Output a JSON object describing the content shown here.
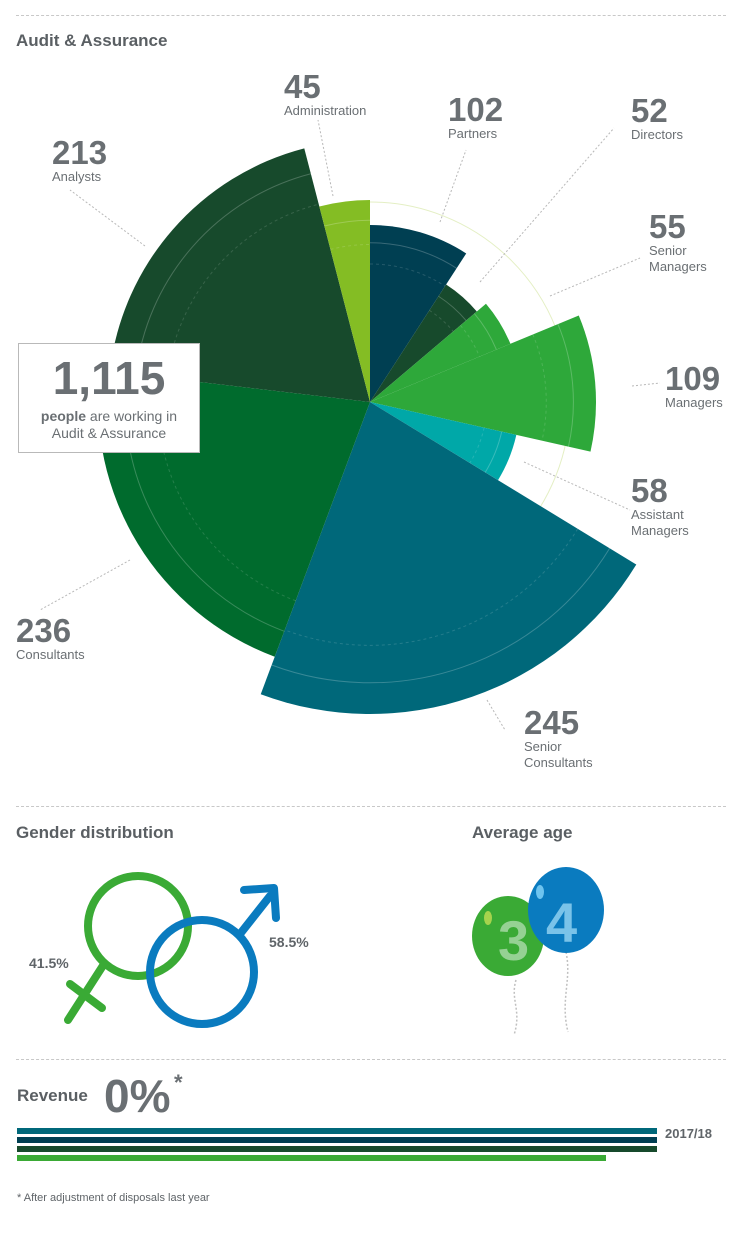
{
  "section_audit": {
    "title": "Audit & Assurance"
  },
  "total": {
    "number": "1,115",
    "bold": "people",
    "rest": " are working in",
    "line2": "Audit & Assurance"
  },
  "chart_data": {
    "type": "pie",
    "title": "Audit & Assurance",
    "slices": [
      {
        "label": "Partners",
        "value": 102,
        "display": "102",
        "color": "#003f52"
      },
      {
        "label": "Directors",
        "value": 52,
        "display": "52",
        "color": "#174a2c"
      },
      {
        "label": "Senior Managers",
        "value": 55,
        "display": "55",
        "color": "#2ea83a"
      },
      {
        "label": "Managers",
        "value": 109,
        "display": "109",
        "color": "#2ea83a"
      },
      {
        "label": "Assistant Managers",
        "value": 58,
        "display": "58",
        "color": "#00a8a8"
      },
      {
        "label": "Senior Consultants",
        "value": 245,
        "display": "245",
        "color": "#00687a"
      },
      {
        "label": "Consultants",
        "value": 236,
        "display": "236",
        "color": "#006b2d"
      },
      {
        "label": "Analysts",
        "value": 213,
        "display": "213",
        "color": "#174a2c"
      },
      {
        "label": "Administration",
        "value": 45,
        "display": "45",
        "color": "#84bd24"
      }
    ]
  },
  "labels": {
    "partners": {
      "num": "102",
      "name": "Partners"
    },
    "directors": {
      "num": "52",
      "name": "Directors"
    },
    "senior_managers": {
      "num": "55",
      "name1": "Senior",
      "name2": "Managers"
    },
    "managers": {
      "num": "109",
      "name": "Managers"
    },
    "assistant_managers": {
      "num": "58",
      "name1": "Assistant",
      "name2": "Managers"
    },
    "senior_consultants": {
      "num": "245",
      "name1": "Senior",
      "name2": "Consultants"
    },
    "consultants": {
      "num": "236",
      "name": "Consultants"
    },
    "analysts": {
      "num": "213",
      "name": "Analysts"
    },
    "administration": {
      "num": "45",
      "name": "Administration"
    }
  },
  "gender": {
    "title": "Gender distribution",
    "female_pct": "41.5%",
    "male_pct": "58.5%",
    "female_color": "#3aaa35",
    "male_color": "#0a7bbf"
  },
  "age": {
    "title": "Average age",
    "digit1": "3",
    "digit2": "4",
    "color1": "#3aaa35",
    "color2": "#0a7bbf"
  },
  "revenue": {
    "label": "Revenue",
    "value": "0%",
    "star": "*",
    "year": "2017/18",
    "bar_colors": [
      "#00687a",
      "#003f52",
      "#174a2c",
      "#3aaa35"
    ],
    "bar_fractions": [
      1.0,
      1.0,
      1.0,
      0.92
    ]
  },
  "footnote": "* After adjustment of disposals last year"
}
